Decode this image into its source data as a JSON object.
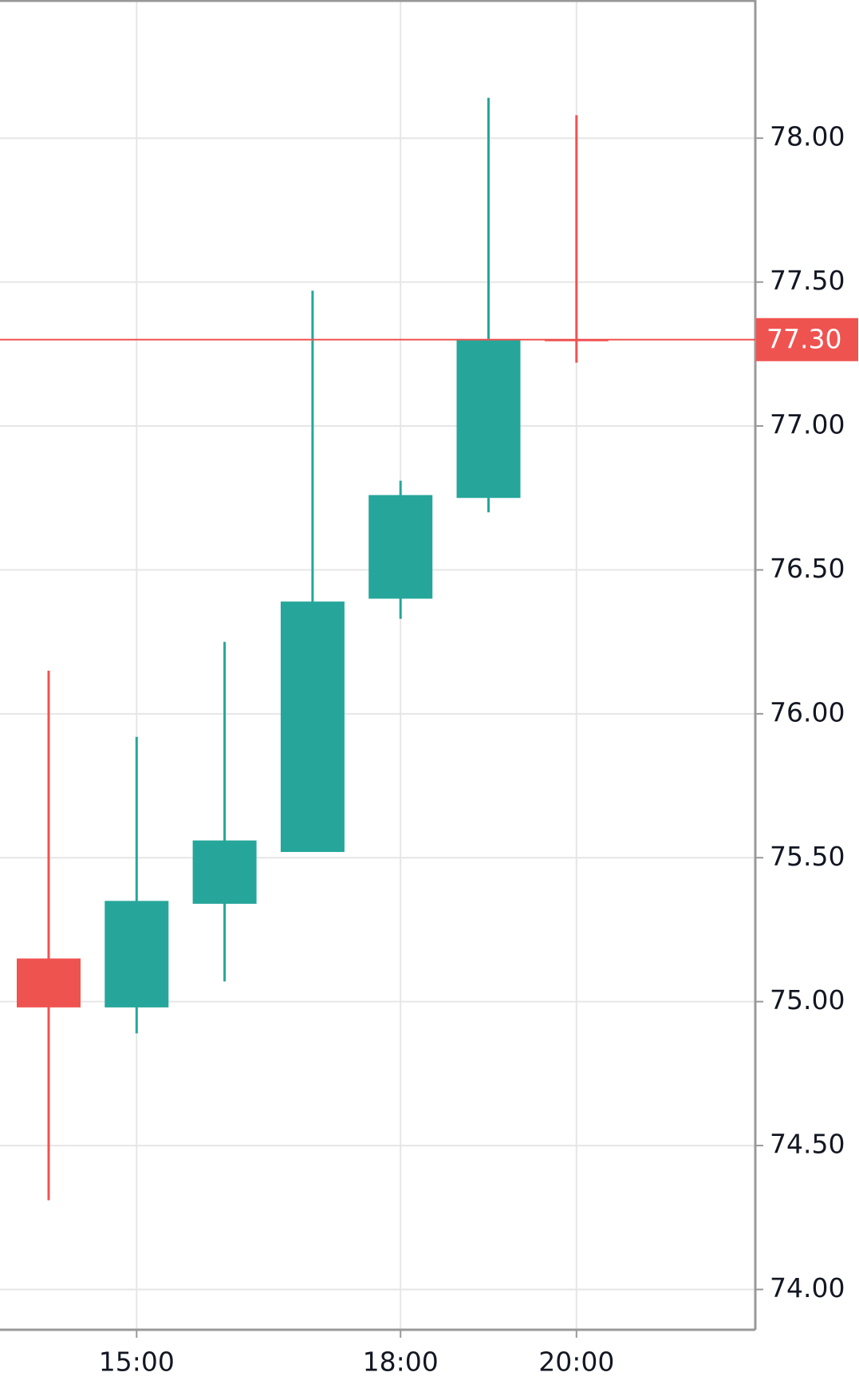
{
  "chart_data": {
    "type": "candlestick",
    "categories": [
      null,
      "15:00",
      null,
      null,
      "18:00",
      null,
      "20:00"
    ],
    "open": [
      75.15,
      74.98,
      75.34,
      75.52,
      76.4,
      76.75,
      77.3
    ],
    "high": [
      76.15,
      75.92,
      76.25,
      77.47,
      76.81,
      78.14,
      78.08
    ],
    "low": [
      74.31,
      74.89,
      75.07,
      75.52,
      76.33,
      76.7,
      77.22
    ],
    "close": [
      74.98,
      75.35,
      75.56,
      76.39,
      76.76,
      77.3,
      77.3
    ],
    "up_color": "#26a69a",
    "down_color": "#ef5350",
    "ylim": [
      73.86,
      78.48
    ],
    "yticks": [
      {
        "value": 74,
        "label": "74.00"
      },
      {
        "value": 74.5,
        "label": "74.50"
      },
      {
        "value": 75,
        "label": "75.00"
      },
      {
        "value": 75.5,
        "label": "75.50"
      },
      {
        "value": 76,
        "label": "76.00"
      },
      {
        "value": 76.5,
        "label": "76.50"
      },
      {
        "value": 77,
        "label": "77.00"
      },
      {
        "value": 77.5,
        "label": "77.50"
      },
      {
        "value": 78,
        "label": "78.00"
      }
    ],
    "last_price": {
      "value": 77.3,
      "label": "77.30"
    },
    "grid": true
  }
}
